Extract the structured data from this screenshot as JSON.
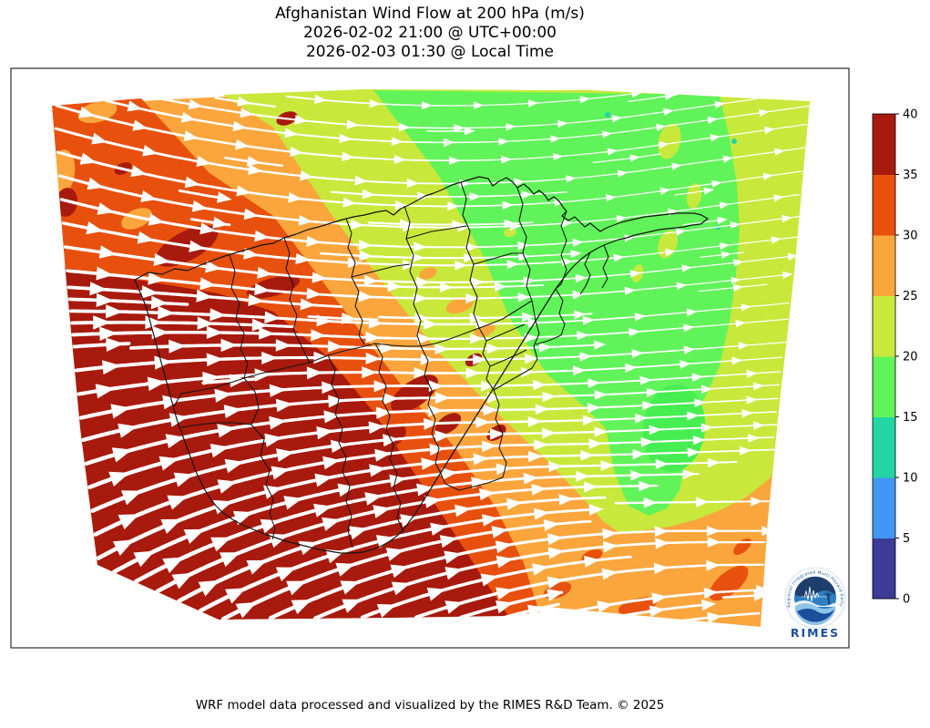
{
  "title": {
    "line1": "Afghanistan Wind Flow at 200 hPa (m/s)",
    "line2": "2026-02-02 21:00 @ UTC+00:00",
    "line3": "2026-02-03 01:30 @ Local Time"
  },
  "footer": {
    "credit": "WRF model data processed and visualized by the RIMES R&D Team. © 2025"
  },
  "colorbar": {
    "ticks": [
      0,
      5,
      10,
      15,
      20,
      25,
      30,
      35,
      40
    ],
    "min": 0,
    "max": 40,
    "bands": [
      {
        "from": 0,
        "to": 5,
        "color": "navy"
      },
      {
        "from": 5,
        "to": 10,
        "color": "blue"
      },
      {
        "from": 10,
        "to": 15,
        "color": "teal"
      },
      {
        "from": 15,
        "to": 20,
        "color": "green"
      },
      {
        "from": 20,
        "to": 25,
        "color": "yellow_green"
      },
      {
        "from": 25,
        "to": 30,
        "color": "orange"
      },
      {
        "from": 30,
        "to": 35,
        "color": "orange_red"
      },
      {
        "from": 35,
        "to": 40,
        "color": "dark_red"
      }
    ]
  },
  "palette": {
    "navy": "#3c3b97",
    "blue": "#4196f4",
    "teal": "#21d6a4",
    "green": "#61f35a",
    "green_bright": "#46ee51",
    "yellow_green": "#c9e83c",
    "orange": "#faa63d",
    "orange_red": "#e8500e",
    "dark_red": "#a81a0d",
    "boundary": "#141414",
    "stream": "#ffffff",
    "logo_blue": "#1a4f9c",
    "logo_mid": "#2e7fc2",
    "logo_dark": "#1c3f6e",
    "logo_light": "#8fc3e8"
  },
  "logo": {
    "name": "RIMES",
    "ring_text": "Regional Integrated Multi-Hazard Early Warning System"
  }
}
